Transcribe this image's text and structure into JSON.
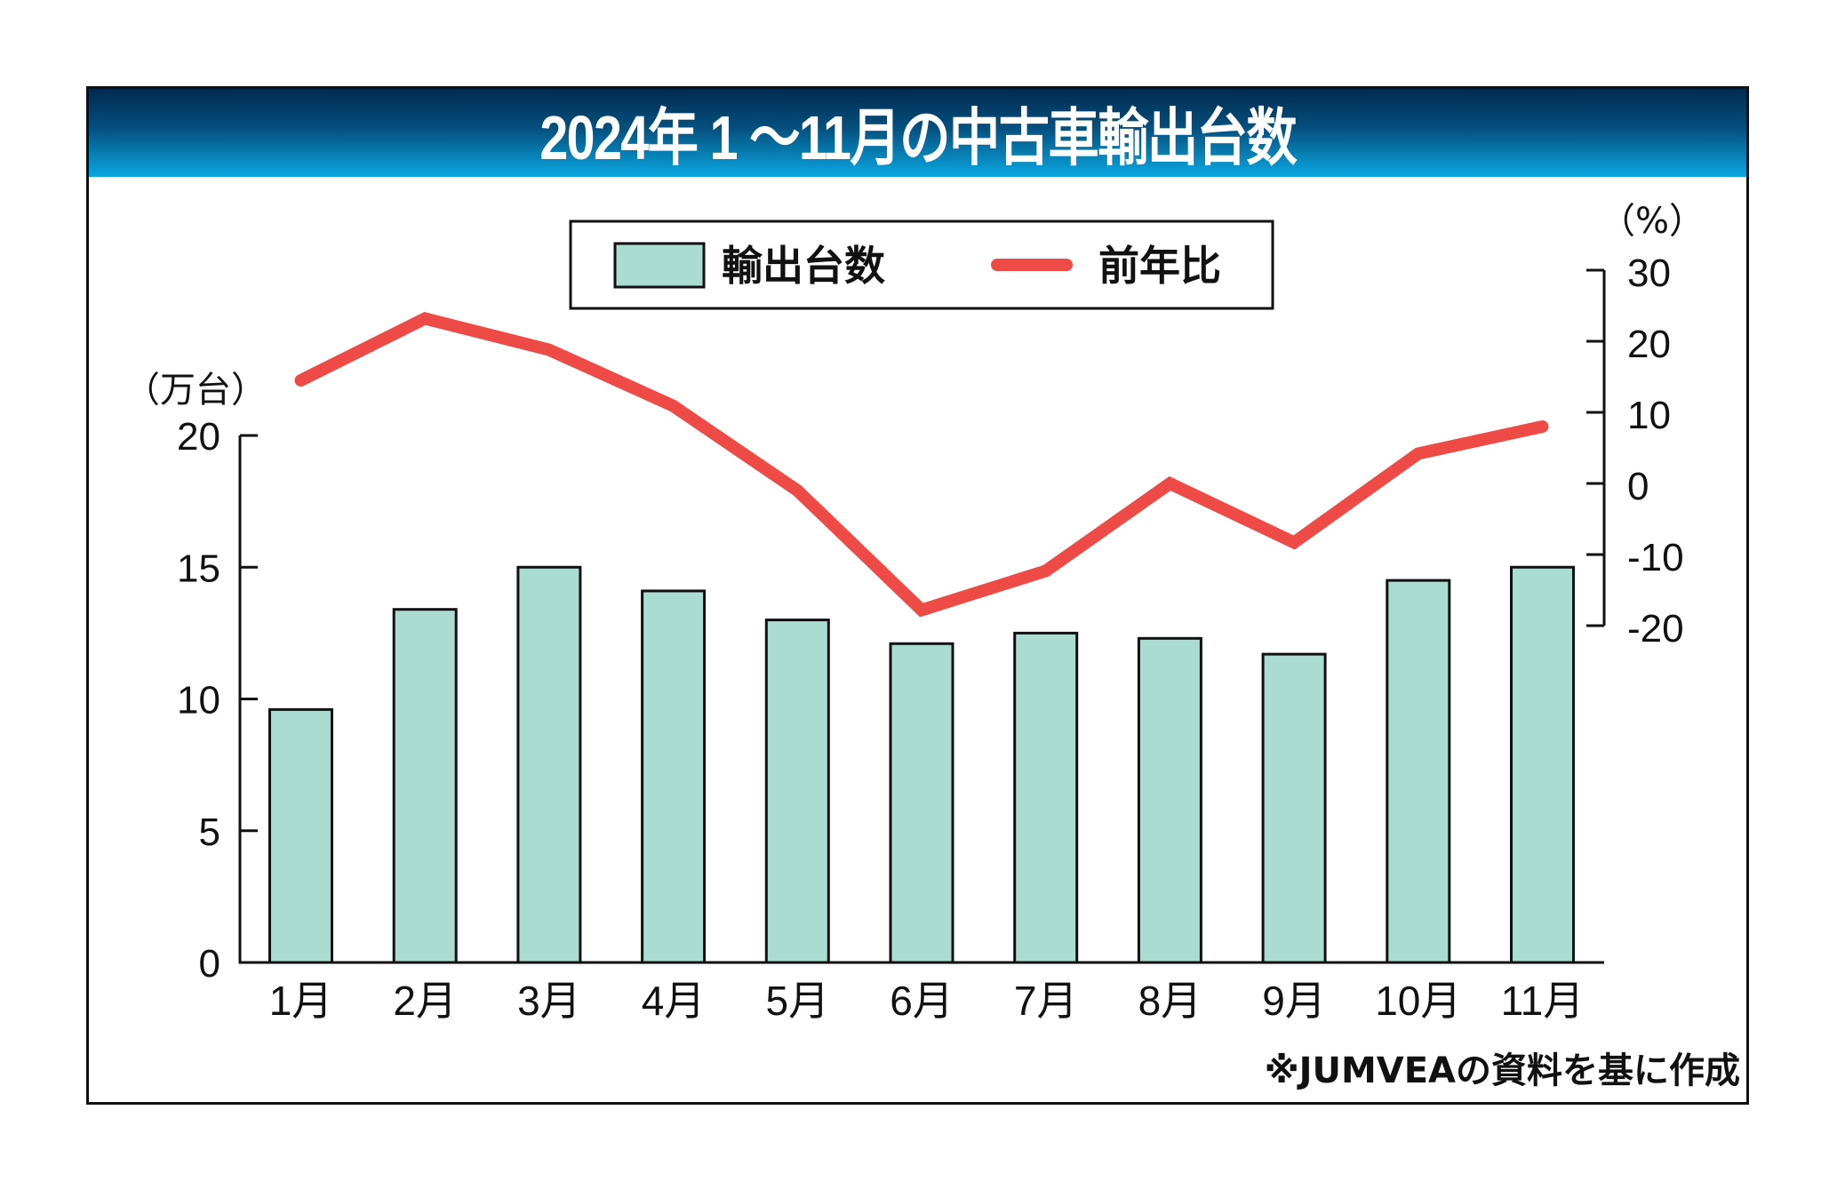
{
  "chart_data": {
    "type": "bar+line",
    "title": "2024年 1 ～11月の中古車輸出台数",
    "categories": [
      "1月",
      "2月",
      "3月",
      "4月",
      "5月",
      "6月",
      "7月",
      "8月",
      "9月",
      "10月",
      "11月"
    ],
    "series": [
      {
        "name": "輸出台数",
        "type": "bar",
        "axis": "left",
        "color": "#abdcd1",
        "values": [
          9.6,
          13.4,
          15.0,
          14.1,
          13.0,
          12.1,
          12.5,
          12.3,
          11.7,
          14.5,
          15.0
        ]
      },
      {
        "name": "前年比",
        "type": "line",
        "axis": "right",
        "color": "#ef4b46",
        "values": [
          14.5,
          23.2,
          18.8,
          10.9,
          -1.0,
          -17.8,
          -12.3,
          0.0,
          -8.3,
          4.2,
          8.0
        ]
      }
    ],
    "left_axis": {
      "unit_label": "（万台）",
      "ylim": [
        0,
        20
      ],
      "ticks": [
        "0",
        "5",
        "10",
        "15",
        "20"
      ],
      "tick_values": [
        0,
        5,
        10,
        15,
        20
      ]
    },
    "right_axis": {
      "unit_label": "（%）",
      "ylim": [
        -20,
        30
      ],
      "ticks": [
        "30",
        "20",
        "10",
        "0",
        "-10",
        "-20"
      ],
      "tick_values": [
        30,
        20,
        10,
        0,
        -10,
        -20
      ]
    },
    "legend": {
      "placement": "top-center",
      "items": [
        {
          "label": "輸出台数",
          "kind": "bar"
        },
        {
          "label": "前年比",
          "kind": "line"
        }
      ]
    },
    "grid": false,
    "source_note": "※JUMVEAの資料を基に作成"
  },
  "colors": {
    "header_top": "#022a50",
    "header_bottom": "#0aa8e2",
    "bar_fill": "#abdcd1",
    "line": "#ef4b46"
  }
}
